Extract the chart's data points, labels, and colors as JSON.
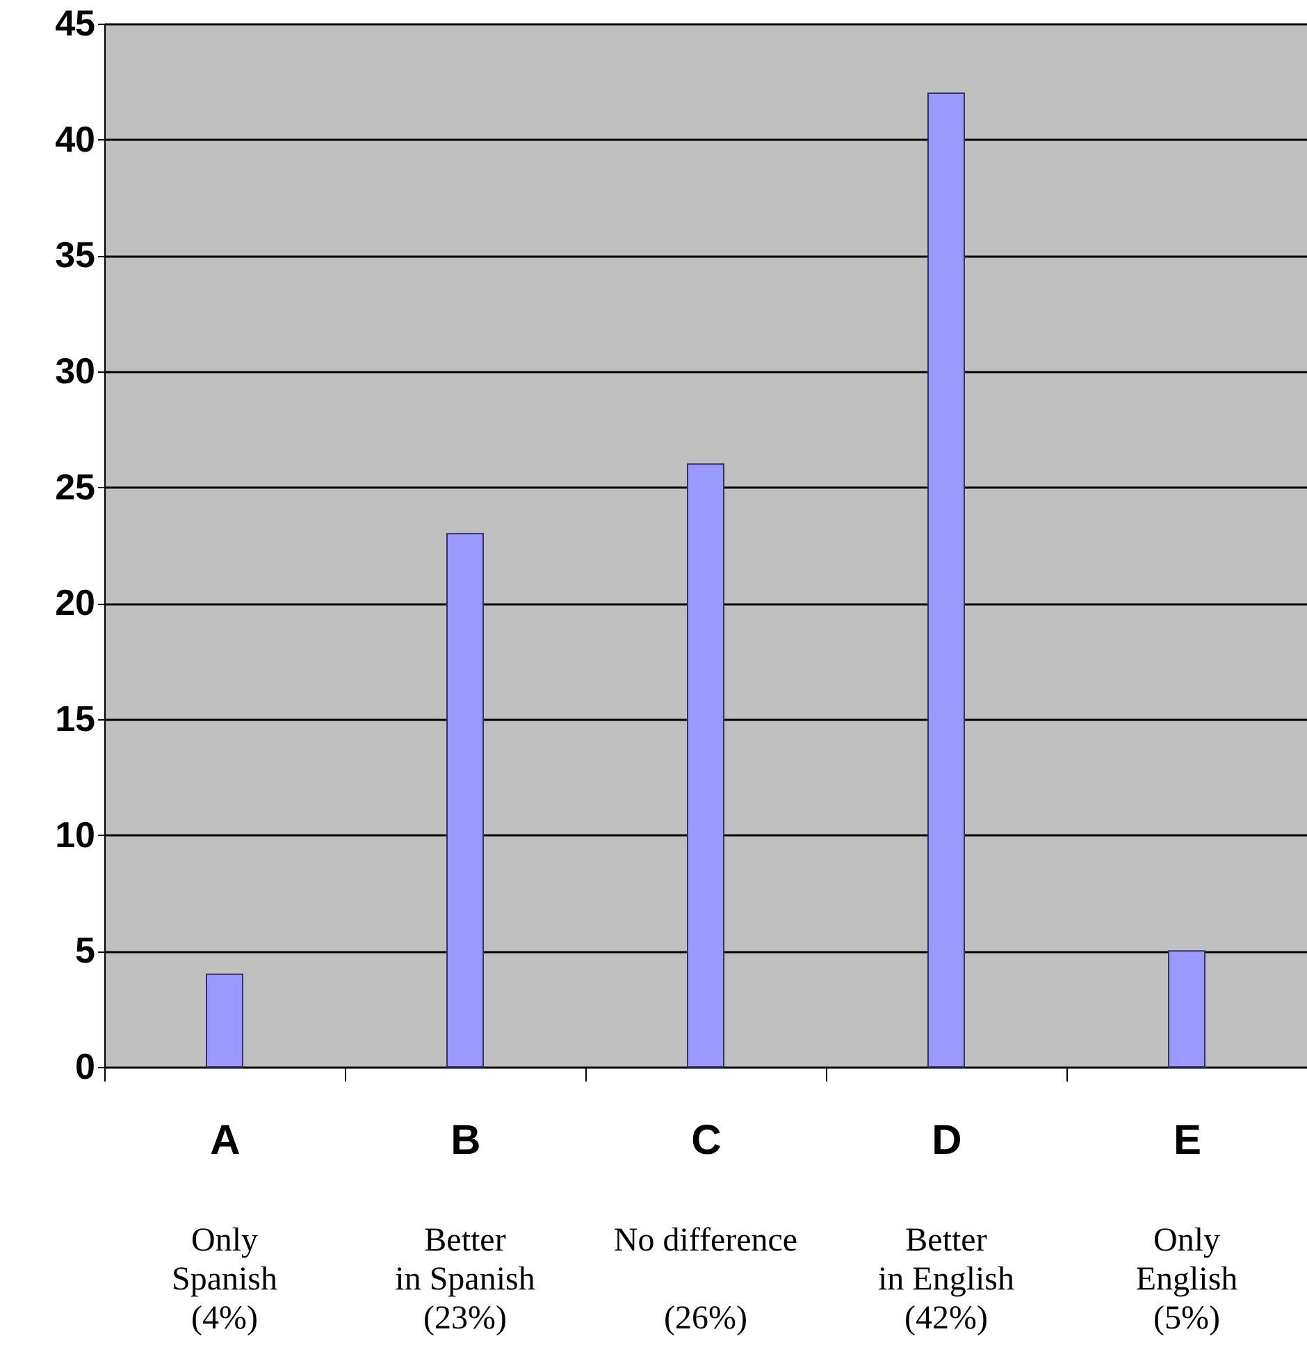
{
  "chart_data": {
    "type": "bar",
    "categories": [
      "A",
      "B",
      "C",
      "D",
      "E"
    ],
    "values": [
      4,
      23,
      26,
      42,
      5
    ],
    "color": "#9999ff",
    "ylim": [
      0,
      45
    ],
    "yticks": [
      0,
      5,
      10,
      15,
      20,
      25,
      30,
      35,
      40,
      45
    ],
    "grid": "y",
    "annotations": [
      "Only\nSpanish\n(4%)",
      "Better\nin Spanish\n(23%)",
      "No difference\n\n(26%)",
      "Better\nin English\n(42%)",
      "Only\nEnglish\n(5%)"
    ]
  }
}
